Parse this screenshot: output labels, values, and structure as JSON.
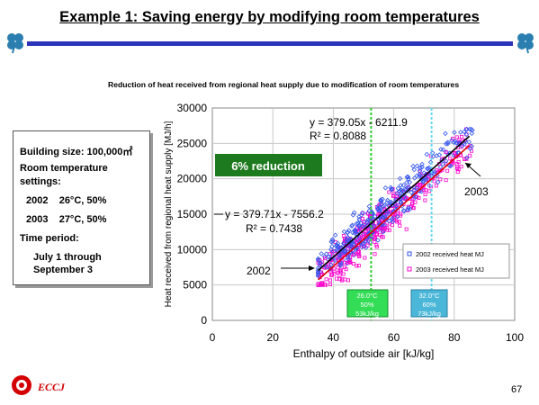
{
  "slide": {
    "title": "Example 1:  Saving energy by modifying room temperatures",
    "page_number": "67",
    "logo_text": "ECCJ"
  },
  "info": {
    "building_size": "Building size: 100,000㎡",
    "room_temp_line1": "Room temperature",
    "room_temp_line2": "settings:",
    "setting_2002": "2002    26°C, 50%",
    "setting_2003": "2003    27°C, 50%",
    "period_label": "Time period:",
    "period_line1": "July 1 through",
    "period_line2": "September 3"
  },
  "chart_data": {
    "type": "scatter",
    "title": "Reduction of heat received from regional heat supply due to modification of room temperatures",
    "xlabel": "Enthalpy of outside air [kJ/kg]",
    "ylabel": "Heat received from regional heat supply [MJ/h]",
    "xlim": [
      0,
      100
    ],
    "ylim": [
      0,
      30000
    ],
    "xticks": [
      0,
      20,
      40,
      60,
      80,
      100
    ],
    "yticks": [
      0,
      5000,
      10000,
      15000,
      20000,
      25000,
      30000
    ],
    "grid": true,
    "legend_position": "bottom-right",
    "series": [
      {
        "name": "2002 received heat MJ",
        "color": "#ff00cc",
        "marker": "square",
        "fit": {
          "equation": "y = 379.71x - 7556.2",
          "r2_label": "R² = 0.7438",
          "slope": 379.71,
          "intercept": -7556.2,
          "x_range": [
            35,
            85
          ],
          "color": "#dd0000"
        }
      },
      {
        "name": "2003 received heat MJ",
        "color": "#3355ee",
        "marker": "diamond",
        "fit": {
          "equation": "y = 379.05x - 6211.9",
          "r2_label": "R² = 0.8088",
          "slope": 379.05,
          "intercept": -6211.9,
          "x_range": [
            35,
            85
          ],
          "color": "#000000"
        }
      }
    ],
    "scatter_extent": {
      "x_range": [
        35,
        86
      ],
      "y_range": [
        5000,
        27000
      ]
    },
    "annotations": {
      "reduction": "6% reduction",
      "label_2002": "2002",
      "label_2003": "2003",
      "box_2002": [
        "26.0°C",
        "50%",
        "53kJ/kg"
      ],
      "box_2003": [
        "32.0°C",
        "60%",
        "73kJ/kg"
      ]
    },
    "reference_lines": [
      {
        "x": 52.5,
        "color": "#33cc33"
      },
      {
        "x": 72.5,
        "color": "#66d8f0"
      }
    ]
  }
}
